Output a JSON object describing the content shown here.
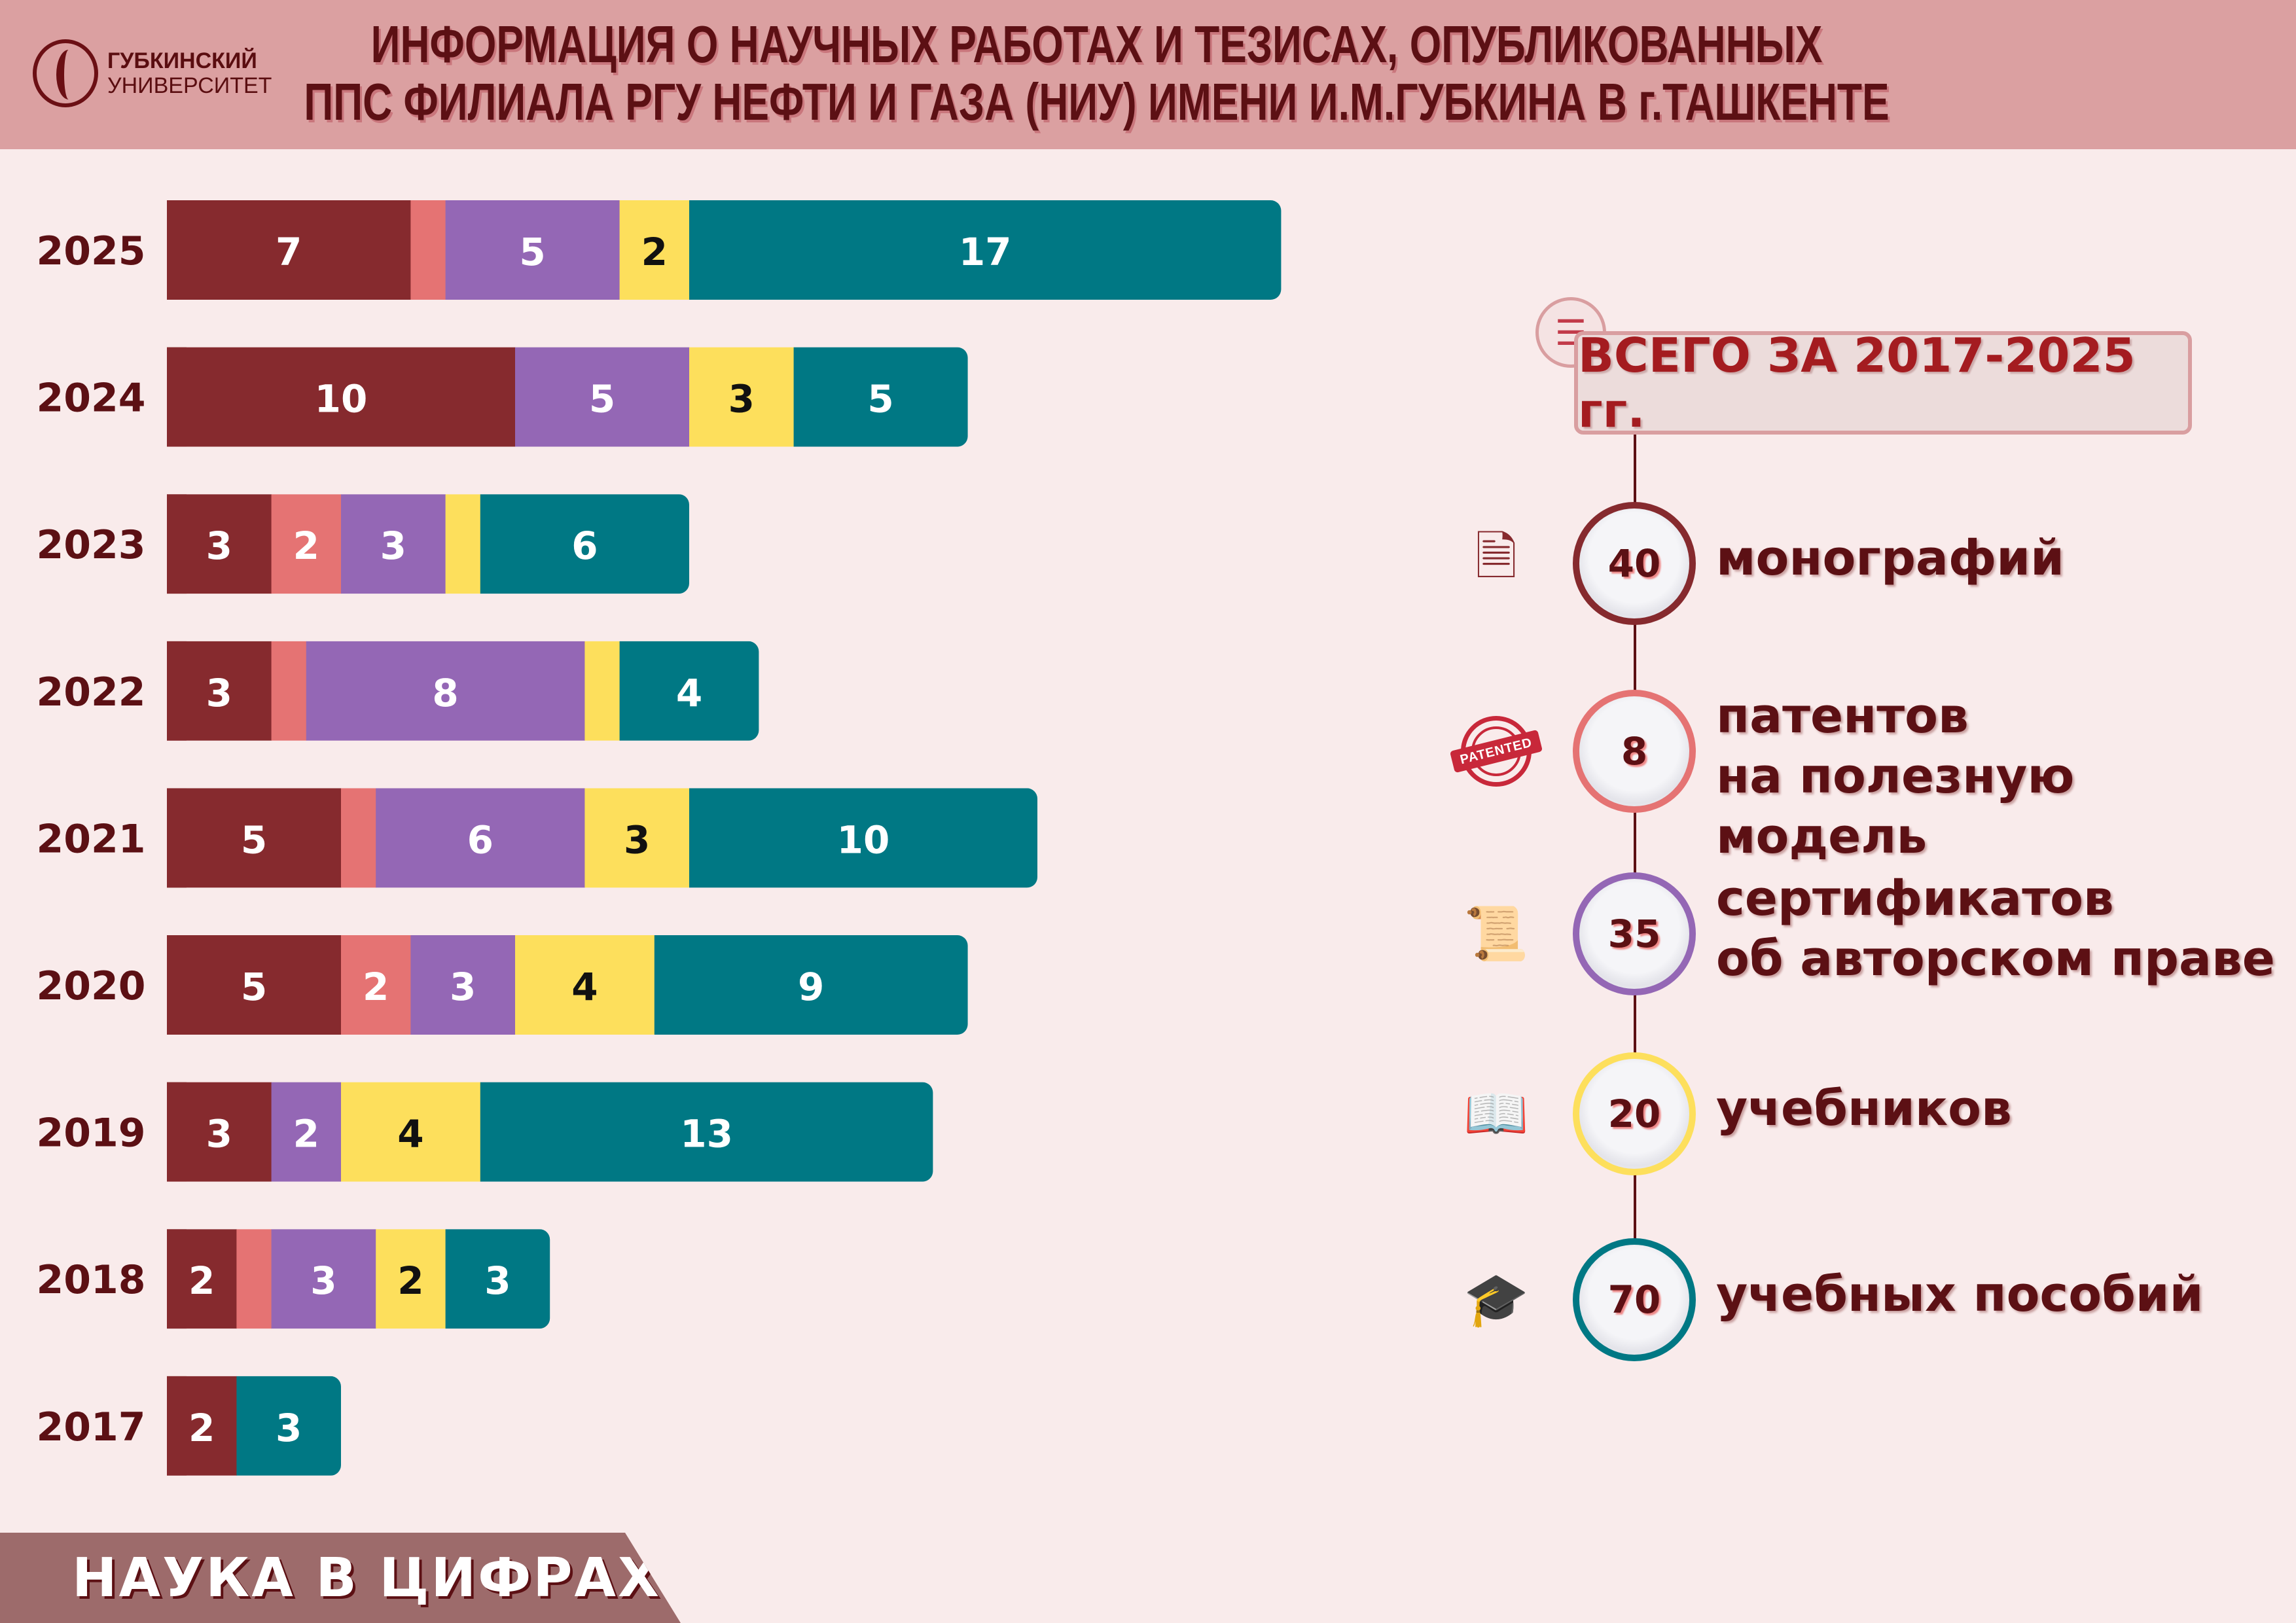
{
  "header": {
    "logo_line1": "ГУБКИНСКИЙ",
    "logo_line2": "УНИВЕРСИТЕТ",
    "title_line1": "ИНФОРМАЦИЯ О НАУЧНЫХ РАБОТАХ И ТЕЗИСАХ, ОПУБЛИКОВАННЫХ",
    "title_line2": "ППС ФИЛИАЛА РГУ НЕФТИ И ГАЗА (НИУ) ИМЕНИ И.М.ГУБКИНА В г.ТАШКЕНТЕ"
  },
  "chart_data": {
    "type": "bar",
    "orientation": "horizontal",
    "stacked": true,
    "categories": [
      "2025",
      "2024",
      "2023",
      "2022",
      "2021",
      "2020",
      "2019",
      "2018",
      "2017"
    ],
    "series": [
      {
        "name": "монографий",
        "color": "#862a2e",
        "label_color": "#ffffff",
        "values": [
          7,
          10,
          3,
          3,
          5,
          5,
          3,
          2,
          2
        ],
        "show_labels": [
          true,
          true,
          true,
          true,
          true,
          true,
          true,
          true,
          true
        ]
      },
      {
        "name": "патентов на полезную модель",
        "color": "#e57373",
        "label_color": "#ffffff",
        "values": [
          1,
          0,
          2,
          1,
          1,
          2,
          0,
          1,
          0
        ],
        "show_labels": [
          false,
          false,
          true,
          false,
          false,
          true,
          false,
          false,
          false
        ]
      },
      {
        "name": "сертификатов об авторском праве",
        "color": "#9467b5",
        "label_color": "#ffffff",
        "values": [
          5,
          5,
          3,
          8,
          6,
          3,
          2,
          3,
          0
        ],
        "show_labels": [
          true,
          true,
          true,
          true,
          true,
          true,
          true,
          true,
          false
        ]
      },
      {
        "name": "учебников",
        "color": "#fddf5c",
        "label_color": "#111111",
        "values": [
          2,
          3,
          1,
          1,
          3,
          4,
          4,
          2,
          0
        ],
        "show_labels": [
          true,
          true,
          false,
          false,
          true,
          true,
          true,
          true,
          false
        ]
      },
      {
        "name": "учебных пособий",
        "color": "#007884",
        "label_color": "#ffffff",
        "values": [
          17,
          5,
          6,
          4,
          10,
          9,
          13,
          3,
          3
        ],
        "show_labels": [
          true,
          true,
          true,
          true,
          true,
          true,
          true,
          true,
          true
        ]
      }
    ],
    "xlim": [
      0,
      32
    ],
    "grid": false,
    "legend": "right"
  },
  "totals": {
    "heading": "ВСЕГО ЗА 2017-2025 гг.",
    "items": [
      {
        "value": "40",
        "line1": "монографий",
        "line2": "",
        "color": "#862a2e",
        "icon": "stack-of-papers-icon"
      },
      {
        "value": "8",
        "line1": "патентов",
        "line2": "на полезную модель",
        "color": "#e57373",
        "icon": "patented-stamp-icon",
        "icon_text": "PATENTED"
      },
      {
        "value": "35",
        "line1": "сертификатов",
        "line2": "об авторском праве",
        "color": "#9467b5",
        "icon": "certificate-icon"
      },
      {
        "value": "20",
        "line1": "учебников",
        "line2": "",
        "color": "#fddf5c",
        "icon": "open-book-icon"
      },
      {
        "value": "70",
        "line1": "учебных пособий",
        "line2": "",
        "color": "#007884",
        "icon": "study-guide-icon"
      }
    ]
  },
  "footer": {
    "label": "НАУКА В ЦИФРАХ"
  }
}
